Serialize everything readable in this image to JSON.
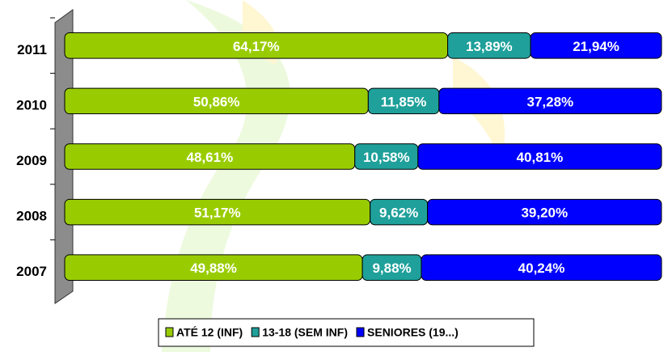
{
  "chart_data": {
    "type": "bar",
    "orientation": "horizontal",
    "stacked": true,
    "categories": [
      "2011",
      "2010",
      "2009",
      "2008",
      "2007"
    ],
    "series": [
      {
        "name": "ATÉ 12 (INF)",
        "color": "#99cc00",
        "values": [
          64.17,
          50.86,
          48.61,
          51.17,
          49.88
        ],
        "value_labels": [
          "64,17%",
          "50,86%",
          "48,61%",
          "51,17%",
          "49,88%"
        ]
      },
      {
        "name": "13-18 (SEM INF)",
        "color": "#1fa09a",
        "values": [
          13.89,
          11.85,
          10.58,
          9.62,
          9.88
        ],
        "value_labels": [
          "13,89%",
          "11,85%",
          "10,58%",
          "9,62%",
          "9,88%"
        ]
      },
      {
        "name": "SENIORES (19...)",
        "color": "#0000ff",
        "values": [
          21.94,
          37.28,
          40.81,
          39.2,
          40.24
        ],
        "value_labels": [
          "21,94%",
          "37,28%",
          "40,81%",
          "39,20%",
          "40,24%"
        ]
      }
    ],
    "legend": "bottom"
  }
}
